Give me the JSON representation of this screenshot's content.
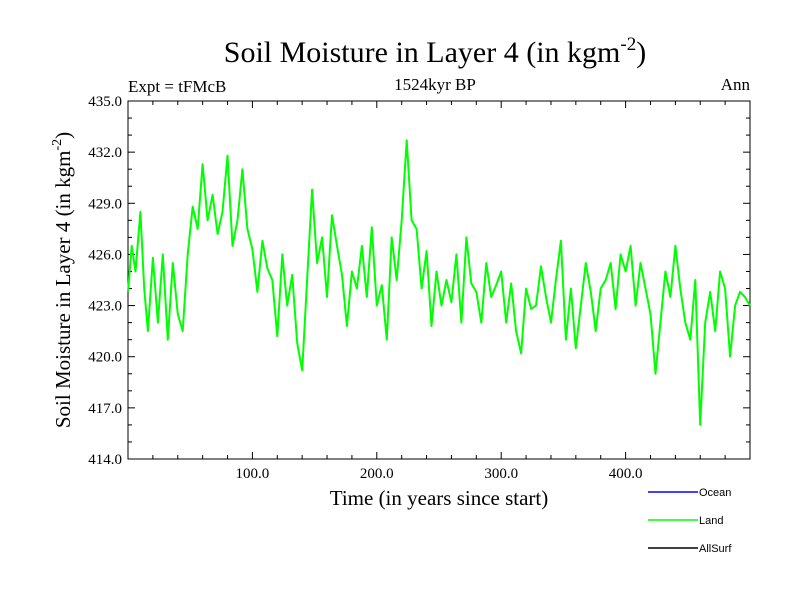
{
  "chart_data": {
    "type": "line",
    "title": "Soil Moisture in Layer 4 (in kgm",
    "title_superscript": "-2",
    "title_close": ")",
    "subtitle": "1524kyr BP",
    "left_label": "Expt = tFMcB",
    "right_label": "Ann",
    "xlabel": "Time (in years since start)",
    "ylabel": "Soil Moisture in Layer 4 (in kgm",
    "ylabel_superscript": "-2",
    "ylabel_close": ")",
    "xlim": [
      0,
      500
    ],
    "ylim": [
      414.0,
      435.0
    ],
    "x_ticks": [
      100,
      200,
      300,
      400
    ],
    "x_tick_labels": [
      "100.0",
      "200.0",
      "300.0",
      "400.0"
    ],
    "y_ticks": [
      414,
      417,
      420,
      423,
      426,
      429,
      432,
      435
    ],
    "y_tick_labels": [
      "414.0",
      "417.0",
      "420.0",
      "423.0",
      "426.0",
      "429.0",
      "432.0",
      "435.0"
    ],
    "legend": [
      {
        "name": "Ocean",
        "color": "#0000ff"
      },
      {
        "name": "Land",
        "color": "#00ff00"
      },
      {
        "name": "AllSurf",
        "color": "#000000"
      }
    ],
    "series": [
      {
        "name": "Land",
        "color": "#00ff00",
        "x": [
          0,
          3,
          6,
          10,
          13,
          16,
          20,
          24,
          28,
          32,
          36,
          40,
          44,
          48,
          52,
          56,
          60,
          64,
          68,
          72,
          76,
          80,
          84,
          88,
          92,
          96,
          100,
          104,
          108,
          112,
          116,
          120,
          124,
          128,
          132,
          136,
          140,
          144,
          148,
          152,
          156,
          160,
          164,
          168,
          172,
          176,
          180,
          184,
          188,
          192,
          196,
          200,
          204,
          208,
          212,
          216,
          220,
          224,
          228,
          232,
          236,
          240,
          244,
          248,
          252,
          256,
          260,
          264,
          268,
          272,
          276,
          280,
          284,
          288,
          292,
          296,
          300,
          304,
          308,
          312,
          316,
          320,
          324,
          328,
          332,
          336,
          340,
          344,
          348,
          352,
          356,
          360,
          364,
          368,
          372,
          376,
          380,
          384,
          388,
          392,
          396,
          400,
          404,
          408,
          412,
          416,
          420,
          424,
          428,
          432,
          436,
          440,
          444,
          448,
          452,
          456,
          460,
          464,
          468,
          472,
          476,
          480,
          484,
          488,
          492,
          496,
          500
        ],
        "values": [
          423.8,
          426.5,
          425.0,
          428.5,
          424.0,
          421.5,
          425.8,
          422.0,
          426.0,
          421.0,
          425.5,
          422.5,
          421.5,
          426.0,
          428.8,
          427.5,
          431.3,
          428.0,
          429.5,
          427.2,
          428.5,
          431.8,
          426.5,
          428.0,
          431.0,
          427.5,
          426.3,
          423.8,
          426.8,
          425.2,
          424.5,
          421.2,
          426.0,
          423.0,
          424.8,
          420.8,
          419.2,
          424.5,
          429.8,
          425.5,
          427.0,
          423.5,
          428.3,
          426.5,
          424.8,
          421.8,
          425.0,
          424.0,
          426.5,
          423.5,
          427.6,
          423.0,
          424.2,
          421.0,
          427.0,
          424.5,
          428.0,
          432.7,
          428.0,
          427.5,
          424.0,
          426.2,
          421.8,
          425.0,
          423.0,
          424.5,
          423.2,
          426.0,
          422.0,
          427.0,
          424.3,
          423.8,
          422.0,
          425.5,
          423.5,
          424.2,
          425.0,
          422.0,
          424.3,
          421.5,
          420.2,
          424.0,
          422.8,
          423.0,
          425.3,
          423.5,
          422.0,
          424.5,
          426.8,
          421.0,
          424.0,
          420.5,
          423.0,
          425.5,
          423.8,
          421.5,
          424.0,
          424.5,
          425.5,
          422.8,
          426.0,
          425.0,
          426.5,
          423.0,
          425.5,
          424.0,
          422.5,
          419.0,
          422.0,
          425.0,
          423.5,
          426.5,
          424.0,
          422.0,
          421.0,
          424.5,
          416.0,
          422.0,
          423.8,
          421.5,
          425.0,
          424.0,
          420.0,
          423.0,
          423.8,
          423.5,
          423.0
        ]
      }
    ]
  }
}
